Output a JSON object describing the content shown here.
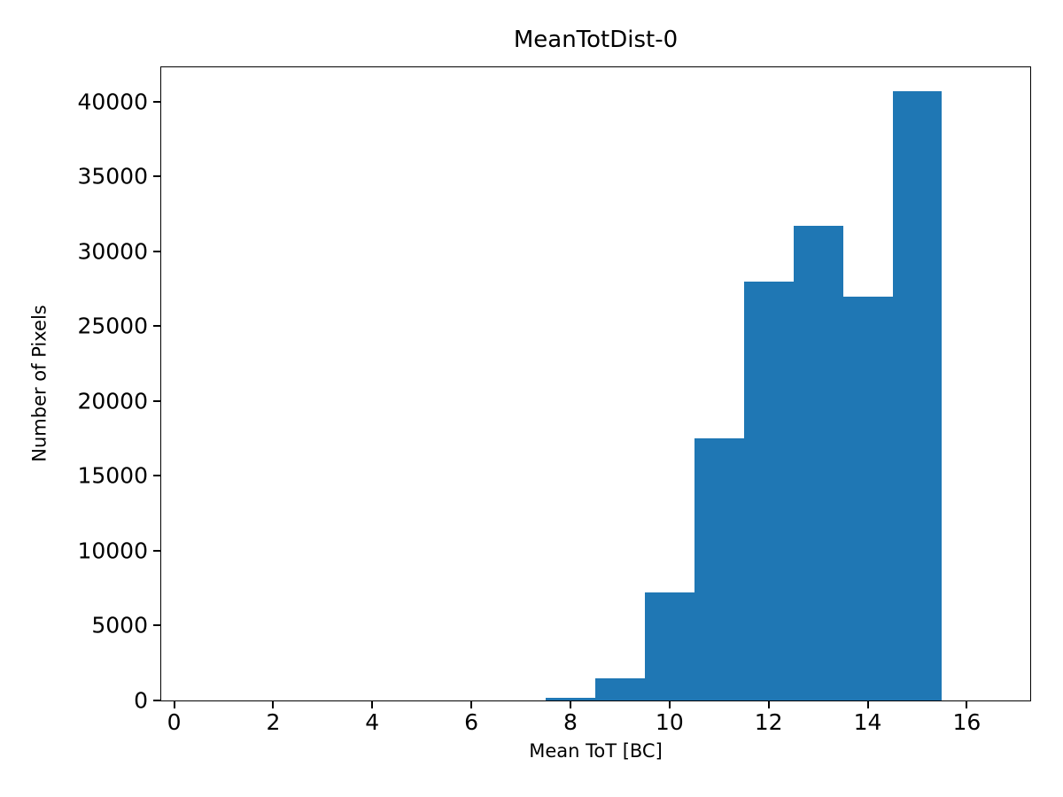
{
  "figure": {
    "background": "#ffffff",
    "text_color": "#000000"
  },
  "chart_data": {
    "type": "bar",
    "subtype": "histogram",
    "title": "MeanTotDist-0",
    "xlabel": "Mean ToT [BC]",
    "ylabel": "Number of Pixels",
    "bin_edges": [
      7.5,
      8.5,
      9.5,
      10.5,
      11.5,
      12.5,
      13.5,
      14.5,
      15.5
    ],
    "values": [
      200,
      1500,
      7200,
      17500,
      28000,
      31700,
      27000,
      40700
    ],
    "bar_color": "#1f77b4",
    "axis_color": "#000000",
    "xlim": [
      -0.26,
      17.28
    ],
    "ylim": [
      0,
      42300
    ],
    "xticks": [
      0,
      2,
      4,
      6,
      8,
      10,
      12,
      14,
      16
    ],
    "yticks": [
      0,
      5000,
      10000,
      15000,
      20000,
      25000,
      30000,
      35000,
      40000
    ],
    "xtick_labels": [
      "0",
      "2",
      "4",
      "6",
      "8",
      "10",
      "12",
      "14",
      "16"
    ],
    "ytick_labels": [
      "0",
      "5000",
      "10000",
      "15000",
      "20000",
      "25000",
      "30000",
      "35000",
      "40000"
    ],
    "grid": false,
    "legend": null
  }
}
